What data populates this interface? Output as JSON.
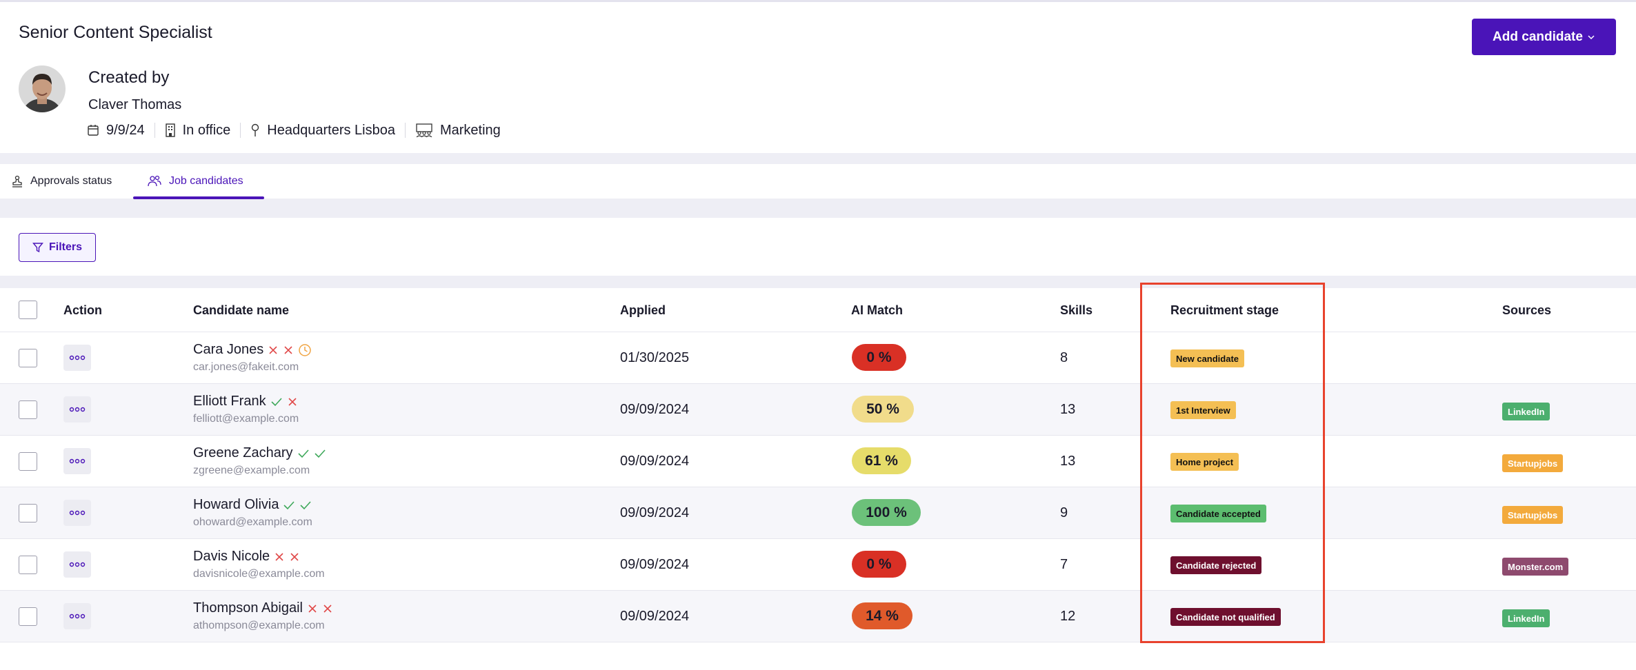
{
  "job": {
    "title": "Senior Content Specialist"
  },
  "header": {
    "add_candidate_label": "Add candidate",
    "created_by_label": "Created by",
    "creator_name": "Claver Thomas",
    "date": "9/9/24",
    "work_mode": "In office",
    "location": "Headquarters Lisboa",
    "department": "Marketing"
  },
  "tabs": [
    {
      "label": "Approvals status",
      "icon": "stamp-icon",
      "active": false
    },
    {
      "label": "Job candidates",
      "icon": "users-icon",
      "active": true
    }
  ],
  "filters": {
    "label": "Filters"
  },
  "table": {
    "headers": {
      "action": "Action",
      "candidate_name": "Candidate name",
      "applied": "Applied",
      "ai_match": "AI Match",
      "skills": "Skills",
      "recruitment_stage": "Recruitment stage",
      "sources": "Sources"
    },
    "rows": [
      {
        "name": "Cara Jones",
        "email": "car.jones@fakeit.com",
        "applied": "01/30/2025",
        "match": "0 %",
        "match_value": 0,
        "skills": "8",
        "stage": "New candidate",
        "source": "",
        "status_icons": [
          "x",
          "x",
          "clock"
        ]
      },
      {
        "name": "Elliott Frank",
        "email": "felliott@example.com",
        "applied": "09/09/2024",
        "match": "50 %",
        "match_value": 50,
        "skills": "13",
        "stage": "1st Interview",
        "source": "LinkedIn",
        "status_icons": [
          "check",
          "x"
        ]
      },
      {
        "name": "Greene Zachary",
        "email": "zgreene@example.com",
        "applied": "09/09/2024",
        "match": "61 %",
        "match_value": 61,
        "skills": "13",
        "stage": "Home project",
        "source": "Startupjobs",
        "status_icons": [
          "check",
          "check"
        ]
      },
      {
        "name": "Howard Olivia",
        "email": "ohoward@example.com",
        "applied": "09/09/2024",
        "match": "100 %",
        "match_value": 100,
        "skills": "9",
        "stage": "Candidate accepted",
        "source": "Startupjobs",
        "status_icons": [
          "check",
          "check"
        ]
      },
      {
        "name": "Davis Nicole",
        "email": "davisnicole@example.com",
        "applied": "09/09/2024",
        "match": "0 %",
        "match_value": 0,
        "skills": "7",
        "stage": "Candidate rejected",
        "source": "Monster.com",
        "status_icons": [
          "x",
          "x"
        ]
      },
      {
        "name": "Thompson Abigail",
        "email": "athompson@example.com",
        "applied": "09/09/2024",
        "match": "14 %",
        "match_value": 14,
        "skills": "12",
        "stage": "Candidate not qualified",
        "source": "LinkedIn",
        "status_icons": [
          "x",
          "x"
        ]
      }
    ]
  },
  "colors": {
    "accent": "#4a14b8",
    "match_red": "#d93025",
    "match_orange": "#e05a2b",
    "match_yellow": "#f1dc8b",
    "match_yellow_green": "#e6dc6a",
    "match_green": "#6cc17a",
    "stage_yellow": "#f4bf54",
    "stage_green": "#5cbd6f",
    "stage_maroon": "#6e0f2e",
    "source_linkedin": "#4caf6e",
    "source_startupjobs": "#f3aa3c",
    "source_monster": "#8e4a6e",
    "check": "#3ea85a",
    "x": "#e04848",
    "clock": "#f0a442"
  }
}
